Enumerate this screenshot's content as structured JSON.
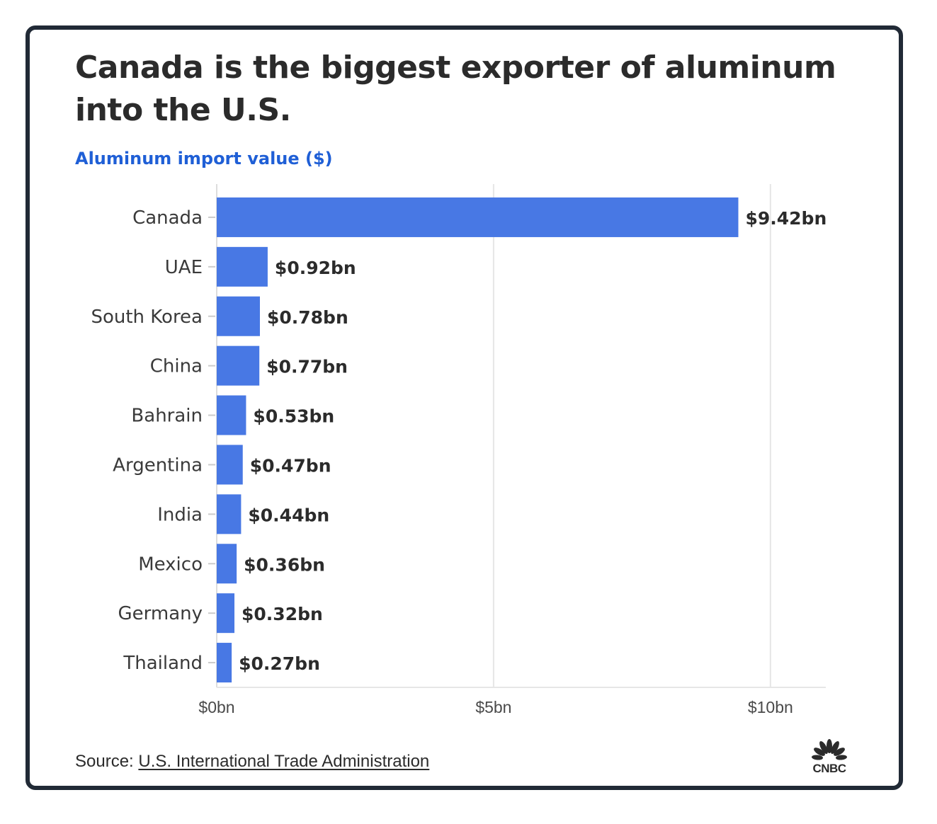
{
  "title": "Canada is the biggest exporter of aluminum into the U.S.",
  "subtitle": "Aluminum import value ($)",
  "source": {
    "prefix": "Source: ",
    "link_text": "U.S. International Trade Administration"
  },
  "logo": {
    "text": "CNBC",
    "icon": "peacock-icon"
  },
  "colors": {
    "bar": "#4878e4",
    "title": "#2b2b2b",
    "subtitle": "#1f5fd6",
    "grid": "#e6e6e6",
    "frame": "#212a36"
  },
  "chart_data": {
    "type": "bar",
    "orientation": "horizontal",
    "categories": [
      "Canada",
      "UAE",
      "South Korea",
      "China",
      "Bahrain",
      "Argentina",
      "India",
      "Mexico",
      "Germany",
      "Thailand"
    ],
    "values": [
      9.42,
      0.92,
      0.78,
      0.77,
      0.53,
      0.47,
      0.44,
      0.36,
      0.32,
      0.27
    ],
    "value_labels": [
      "$9.42bn",
      "$0.92bn",
      "$0.78bn",
      "$0.77bn",
      "$0.53bn",
      "$0.47bn",
      "$0.44bn",
      "$0.36bn",
      "$0.32bn",
      "$0.27bn"
    ],
    "xlim": [
      0,
      11
    ],
    "x_ticks": [
      0,
      5,
      10
    ],
    "x_tick_labels": [
      "$0bn",
      "$5bn",
      "$10bn"
    ],
    "grid": true
  }
}
